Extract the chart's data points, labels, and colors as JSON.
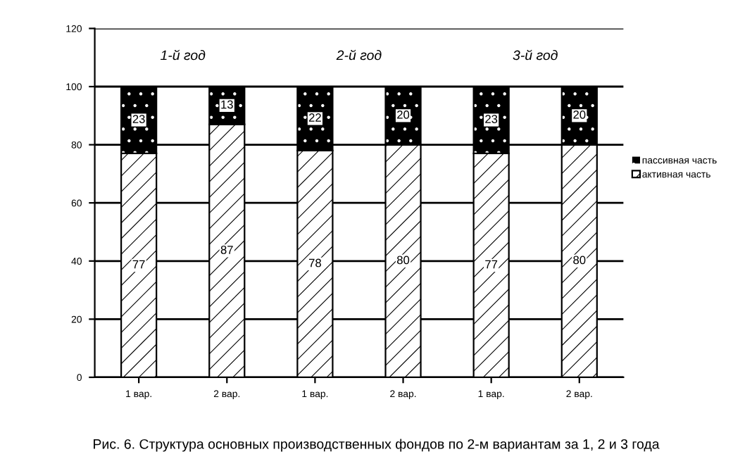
{
  "chart_data": {
    "type": "bar",
    "stacked": true,
    "categories": [
      "1 вар.",
      "2 вар.",
      "1 вар.",
      "2 вар.",
      "1 вар.",
      "2 вар."
    ],
    "series": [
      {
        "name": "активная часть",
        "color": "#000000",
        "values": [
          77,
          87,
          78,
          80,
          77,
          80
        ]
      },
      {
        "name": "пассивная часть",
        "color": "#000000",
        "values": [
          23,
          13,
          22,
          20,
          23,
          20
        ]
      }
    ],
    "ylim": [
      0,
      120
    ],
    "yticks": [
      0,
      20,
      40,
      60,
      80,
      100,
      120
    ],
    "grid": "y",
    "legend": "right",
    "data_labels": true,
    "annotations": [
      "1-й год",
      "2-й год",
      "3-й год",
      "Рис. 6. Структура основных производственных фондов по 2-м вариантам за 1, 2 и 3 года"
    ]
  }
}
